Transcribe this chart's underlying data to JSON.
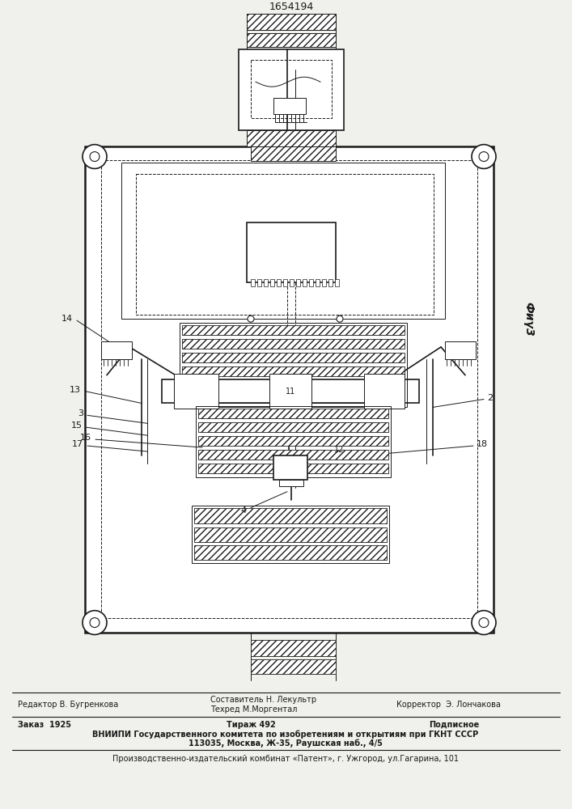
{
  "patent_number": "1654194",
  "fig_label": "Фиγ3",
  "bg": "#f0f0ec",
  "dc": "#1a1a1a",
  "footer": {
    "editor": "Редактор В. Бугренкова",
    "composer": "Составитель Н. Лекультр",
    "techred": "Техред М.Моргентал",
    "corrector": "Корректор  Э. Лончакова",
    "zakaz": "Заказ  1925",
    "tirazh": "Тираж 492",
    "podpisnoe": "Подписное",
    "vniipи": "ВНИИПИ Государственного комитета по изобретениям и открытиям при ГКНТ СССР",
    "address": "113035, Москва, Ж-35, Раушская наб., 4/5",
    "patent_org": "Производственно-издательский комбинат «Патент», г. Ужгород, ул.Гагарина, 101"
  }
}
